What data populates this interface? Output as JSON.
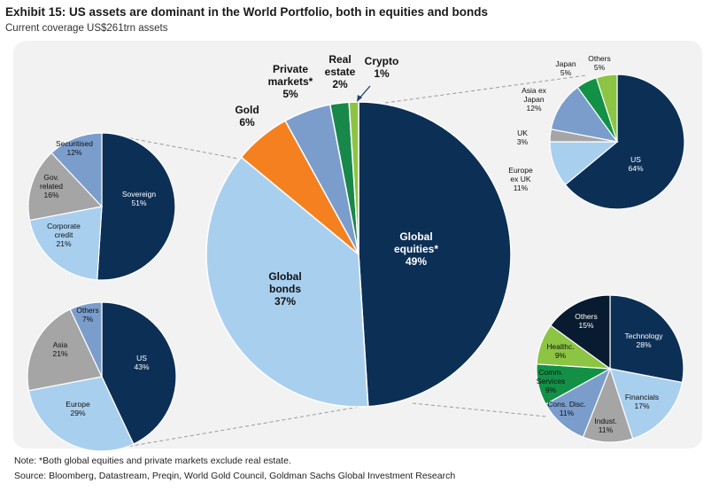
{
  "header": {
    "title": "Exhibit 15: US assets are dominant in the World Portfolio, both in equities and bonds",
    "subtitle": "Current coverage US$261trn assets"
  },
  "footer": {
    "note": "Note: *Both global equities and private markets exclude real estate.",
    "source": "Source: Bloomberg, Datastream, Preqin, World Gold Council, Goldman Sachs Global Investment Research"
  },
  "colors": {
    "navy": "#0c2f56",
    "light_blue": "#a9cfef",
    "mid_blue": "#7a9dcc",
    "gray": "#a5a5a5",
    "orange": "#f4801f",
    "dark_green": "#17884a",
    "light_green": "#8cc444",
    "green": "#129146",
    "black_navy": "#081b30"
  },
  "chart_data": [
    {
      "type": "pie",
      "id": "world",
      "slices": [
        {
          "label": [
            "Global",
            "equities*"
          ],
          "value": 49,
          "display": "49%",
          "color": "#0c2f56",
          "text": "#ffffff"
        },
        {
          "label": [
            "Global",
            "bonds"
          ],
          "value": 37,
          "display": "37%",
          "color": "#a9cfef",
          "text": "#111111"
        },
        {
          "label": [
            "Gold"
          ],
          "value": 6,
          "display": "6%",
          "color": "#f4801f",
          "text": "#111111"
        },
        {
          "label": [
            "Private",
            "markets*"
          ],
          "value": 5,
          "display": "5%",
          "color": "#7a9dcc",
          "text": "#111111"
        },
        {
          "label": [
            "Real",
            "estate"
          ],
          "value": 2,
          "display": "2%",
          "color": "#17884a",
          "text": "#111111"
        },
        {
          "label": [
            "Crypto"
          ],
          "value": 1,
          "display": "1%",
          "color": "#8cc444",
          "text": "#111111"
        }
      ]
    },
    {
      "type": "pie",
      "id": "equities-region",
      "slices": [
        {
          "label": [
            "US"
          ],
          "value": 64,
          "display": "64%",
          "color": "#0c2f56",
          "text": "#ffffff"
        },
        {
          "label": [
            "Europe",
            "ex UK"
          ],
          "value": 11,
          "display": "11%",
          "color": "#a9cfef",
          "text": "#111111"
        },
        {
          "label": [
            "UK"
          ],
          "value": 3,
          "display": "3%",
          "color": "#a5a5a5",
          "text": "#111111"
        },
        {
          "label": [
            "Asia ex",
            "Japan"
          ],
          "value": 12,
          "display": "12%",
          "color": "#7a9dcc",
          "text": "#111111"
        },
        {
          "label": [
            "Japan"
          ],
          "value": 5,
          "display": "5%",
          "color": "#129146",
          "text": "#111111"
        },
        {
          "label": [
            "Others"
          ],
          "value": 5,
          "display": "5%",
          "color": "#8cc444",
          "text": "#111111"
        }
      ]
    },
    {
      "type": "pie",
      "id": "equities-sector",
      "slices": [
        {
          "label": [
            "Technology"
          ],
          "value": 28,
          "display": "28%",
          "color": "#0c2f56",
          "text": "#ffffff"
        },
        {
          "label": [
            "Financials"
          ],
          "value": 17,
          "display": "17%",
          "color": "#a9cfef",
          "text": "#111111"
        },
        {
          "label": [
            "Indust."
          ],
          "value": 11,
          "display": "11%",
          "color": "#a5a5a5",
          "text": "#111111"
        },
        {
          "label": [
            "Cons. Disc."
          ],
          "value": 11,
          "display": "11%",
          "color": "#7a9dcc",
          "text": "#111111"
        },
        {
          "label": [
            "Comm.",
            "Services"
          ],
          "value": 9,
          "display": "9%",
          "color": "#129146",
          "text": "#111111"
        },
        {
          "label": [
            "Healthc."
          ],
          "value": 9,
          "display": "9%",
          "color": "#8cc444",
          "text": "#111111"
        },
        {
          "label": [
            "Others"
          ],
          "value": 15,
          "display": "15%",
          "color": "#081b30",
          "text": "#ffffff"
        }
      ]
    },
    {
      "type": "pie",
      "id": "bonds-type",
      "slices": [
        {
          "label": [
            "Sovereign"
          ],
          "value": 51,
          "display": "51%",
          "color": "#0c2f56",
          "text": "#ffffff"
        },
        {
          "label": [
            "Corporate",
            "credit"
          ],
          "value": 21,
          "display": "21%",
          "color": "#a9cfef",
          "text": "#111111"
        },
        {
          "label": [
            "Gov.",
            "related"
          ],
          "value": 16,
          "display": "16%",
          "color": "#a5a5a5",
          "text": "#111111"
        },
        {
          "label": [
            "Securitised"
          ],
          "value": 12,
          "display": "12%",
          "color": "#7a9dcc",
          "text": "#111111"
        }
      ]
    },
    {
      "type": "pie",
      "id": "bonds-region",
      "slices": [
        {
          "label": [
            "US"
          ],
          "value": 43,
          "display": "43%",
          "color": "#0c2f56",
          "text": "#ffffff"
        },
        {
          "label": [
            "Europe"
          ],
          "value": 29,
          "display": "29%",
          "color": "#a9cfef",
          "text": "#111111"
        },
        {
          "label": [
            "Asia"
          ],
          "value": 21,
          "display": "21%",
          "color": "#a5a5a5",
          "text": "#111111"
        },
        {
          "label": [
            "Others"
          ],
          "value": 7,
          "display": "7%",
          "color": "#7a9dcc",
          "text": "#111111"
        }
      ]
    }
  ]
}
